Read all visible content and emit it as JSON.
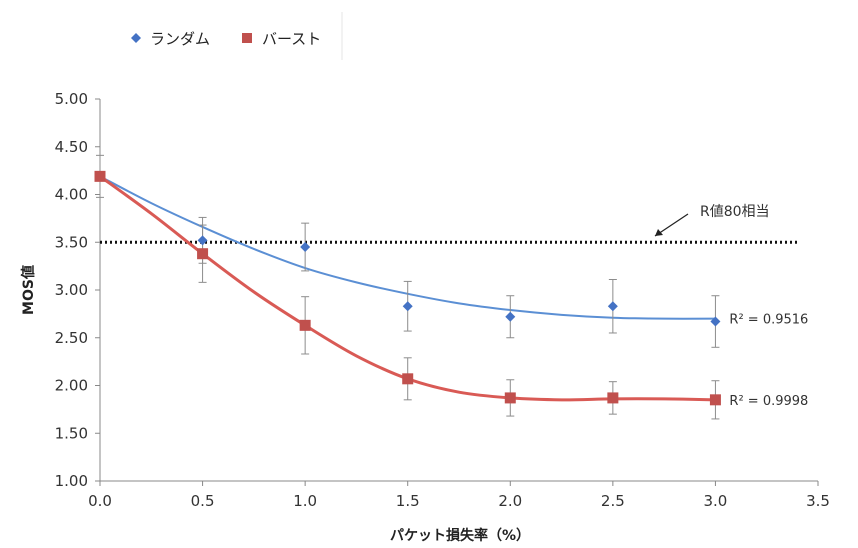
{
  "chart_data": {
    "type": "scatter",
    "xlabel": "パケット損失率（%）",
    "ylabel": "MOS値",
    "xlim": [
      0,
      3.5
    ],
    "ylim": [
      1.0,
      5.0
    ],
    "x_ticks": [
      "0.0",
      "0.5",
      "1.0",
      "1.5",
      "2.0",
      "2.5",
      "3.0",
      "3.5"
    ],
    "y_ticks": [
      "1.00",
      "1.50",
      "2.00",
      "2.50",
      "3.00",
      "3.50",
      "4.00",
      "4.50",
      "5.00"
    ],
    "grid": false,
    "legend_position": "top-left",
    "series": [
      {
        "name": "ランダム",
        "marker": "diamond",
        "color": "#4472C4",
        "trend_color": "#5B8FD4",
        "x": [
          0.0,
          0.5,
          1.0,
          1.5,
          2.0,
          2.5,
          3.0
        ],
        "y": [
          4.19,
          3.52,
          3.45,
          2.83,
          2.72,
          2.83,
          2.67
        ],
        "error": [
          0.22,
          0.24,
          0.25,
          0.26,
          0.22,
          0.28,
          0.27
        ],
        "trendline": "polynomial",
        "r_squared_label": "R² = 0.9516",
        "trend_points": [
          [
            0,
            4.19
          ],
          [
            0.25,
            3.91
          ],
          [
            0.5,
            3.66
          ],
          [
            0.75,
            3.43
          ],
          [
            1.0,
            3.23
          ],
          [
            1.25,
            3.08
          ],
          [
            1.5,
            2.96
          ],
          [
            1.75,
            2.86
          ],
          [
            2.0,
            2.79
          ],
          [
            2.25,
            2.74
          ],
          [
            2.5,
            2.71
          ],
          [
            2.75,
            2.7
          ],
          [
            3.0,
            2.7
          ]
        ]
      },
      {
        "name": "バースト",
        "marker": "square",
        "color": "#C0504D",
        "trend_color": "#D95A55",
        "x": [
          0.0,
          0.5,
          1.0,
          1.5,
          2.0,
          2.5,
          3.0
        ],
        "y": [
          4.19,
          3.38,
          2.63,
          2.07,
          1.87,
          1.87,
          1.85
        ],
        "error": [
          0.0,
          0.3,
          0.3,
          0.22,
          0.19,
          0.17,
          0.2
        ],
        "trendline": "polynomial",
        "r_squared_label": "R² = 0.9998",
        "trend_points": [
          [
            0,
            4.19
          ],
          [
            0.25,
            3.8
          ],
          [
            0.5,
            3.38
          ],
          [
            0.75,
            2.98
          ],
          [
            1.0,
            2.63
          ],
          [
            1.25,
            2.31
          ],
          [
            1.5,
            2.07
          ],
          [
            1.75,
            1.93
          ],
          [
            2.0,
            1.87
          ],
          [
            2.25,
            1.85
          ],
          [
            2.5,
            1.86
          ],
          [
            2.75,
            1.86
          ],
          [
            3.0,
            1.85
          ]
        ]
      }
    ],
    "reference_line": {
      "y": 3.5,
      "x_range": [
        0,
        3.4
      ],
      "style": "dotted",
      "color": "#111111",
      "label": "R値80相当"
    }
  }
}
